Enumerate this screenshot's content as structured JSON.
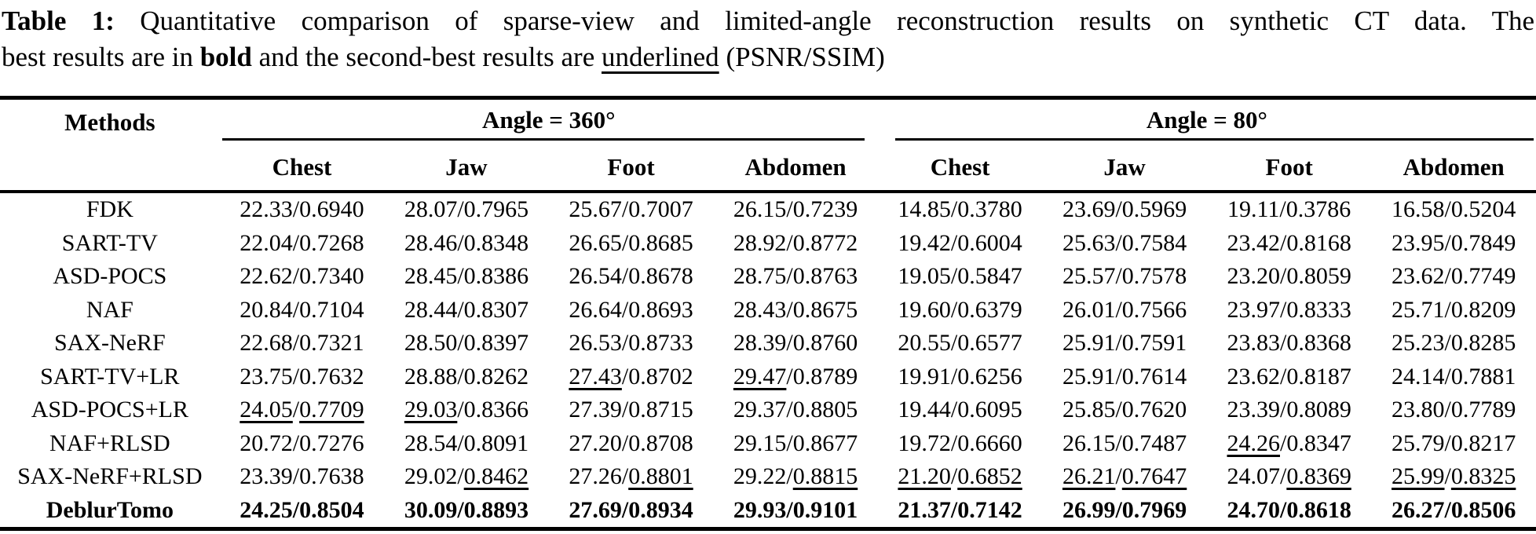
{
  "caption": {
    "label": "Table 1:",
    "line1_rest": "Quantitative comparison of sparse-view and limited-angle reconstruction results on synthetic CT data. The",
    "line2_pre": "best results are in",
    "bold_word": "bold",
    "line2_mid": "and the second-best results are",
    "underlined_word": "underlined",
    "line2_post": "(PSNR/SSIM)"
  },
  "table": {
    "methods_header": "Methods",
    "metric_format": "PSNR/SSIM",
    "group_headers": [
      {
        "label": "Angle = 360°"
      },
      {
        "label": "Angle = 80°"
      }
    ],
    "sub_headers": [
      "Chest",
      "Jaw",
      "Foot",
      "Abdomen",
      "Chest",
      "Jaw",
      "Foot",
      "Abdomen"
    ],
    "rows": [
      {
        "method": "FDK",
        "bold": false,
        "cells": [
          {
            "p": "22.33",
            "s": "0.6940"
          },
          {
            "p": "28.07",
            "s": "0.7965"
          },
          {
            "p": "25.67",
            "s": "0.7007"
          },
          {
            "p": "26.15",
            "s": "0.7239"
          },
          {
            "p": "14.85",
            "s": "0.3780"
          },
          {
            "p": "23.69",
            "s": "0.5969"
          },
          {
            "p": "19.11",
            "s": "0.3786"
          },
          {
            "p": "16.58",
            "s": "0.5204"
          }
        ]
      },
      {
        "method": "SART-TV",
        "bold": false,
        "cells": [
          {
            "p": "22.04",
            "s": "0.7268"
          },
          {
            "p": "28.46",
            "s": "0.8348"
          },
          {
            "p": "26.65",
            "s": "0.8685"
          },
          {
            "p": "28.92",
            "s": "0.8772"
          },
          {
            "p": "19.42",
            "s": "0.6004"
          },
          {
            "p": "25.63",
            "s": "0.7584"
          },
          {
            "p": "23.42",
            "s": "0.8168"
          },
          {
            "p": "23.95",
            "s": "0.7849"
          }
        ]
      },
      {
        "method": "ASD-POCS",
        "bold": false,
        "cells": [
          {
            "p": "22.62",
            "s": "0.7340"
          },
          {
            "p": "28.45",
            "s": "0.8386"
          },
          {
            "p": "26.54",
            "s": "0.8678"
          },
          {
            "p": "28.75",
            "s": "0.8763"
          },
          {
            "p": "19.05",
            "s": "0.5847"
          },
          {
            "p": "25.57",
            "s": "0.7578"
          },
          {
            "p": "23.20",
            "s": "0.8059"
          },
          {
            "p": "23.62",
            "s": "0.7749"
          }
        ]
      },
      {
        "method": "NAF",
        "bold": false,
        "cells": [
          {
            "p": "20.84",
            "s": "0.7104"
          },
          {
            "p": "28.44",
            "s": "0.8307"
          },
          {
            "p": "26.64",
            "s": "0.8693"
          },
          {
            "p": "28.43",
            "s": "0.8675"
          },
          {
            "p": "19.60",
            "s": "0.6379"
          },
          {
            "p": "26.01",
            "s": "0.7566"
          },
          {
            "p": "23.97",
            "s": "0.8333"
          },
          {
            "p": "25.71",
            "s": "0.8209"
          }
        ]
      },
      {
        "method": "SAX-NeRF",
        "bold": false,
        "cells": [
          {
            "p": "22.68",
            "s": "0.7321"
          },
          {
            "p": "28.50",
            "s": "0.8397"
          },
          {
            "p": "26.53",
            "s": "0.8733"
          },
          {
            "p": "28.39",
            "s": "0.8760"
          },
          {
            "p": "20.55",
            "s": "0.6577"
          },
          {
            "p": "25.91",
            "s": "0.7591"
          },
          {
            "p": "23.83",
            "s": "0.8368"
          },
          {
            "p": "25.23",
            "s": "0.8285"
          }
        ]
      },
      {
        "method": "SART-TV+LR",
        "bold": false,
        "cells": [
          {
            "p": "23.75",
            "s": "0.7632"
          },
          {
            "p": "28.88",
            "s": "0.8262"
          },
          {
            "p": "27.43",
            "pu": true,
            "s": "0.8702"
          },
          {
            "p": "29.47",
            "pu": true,
            "s": "0.8789"
          },
          {
            "p": "19.91",
            "s": "0.6256"
          },
          {
            "p": "25.91",
            "s": "0.7614"
          },
          {
            "p": "23.62",
            "s": "0.8187"
          },
          {
            "p": "24.14",
            "s": "0.7881"
          }
        ]
      },
      {
        "method": "ASD-POCS+LR",
        "bold": false,
        "cells": [
          {
            "p": "24.05",
            "pu": true,
            "s": "0.7709",
            "su": true
          },
          {
            "p": "29.03",
            "pu": true,
            "s": "0.8366"
          },
          {
            "p": "27.39",
            "s": "0.8715"
          },
          {
            "p": "29.37",
            "s": "0.8805"
          },
          {
            "p": "19.44",
            "s": "0.6095"
          },
          {
            "p": "25.85",
            "s": "0.7620"
          },
          {
            "p": "23.39",
            "s": "0.8089"
          },
          {
            "p": "23.80",
            "s": "0.7789"
          }
        ]
      },
      {
        "method": "NAF+RLSD",
        "bold": false,
        "cells": [
          {
            "p": "20.72",
            "s": "0.7276"
          },
          {
            "p": "28.54",
            "s": "0.8091"
          },
          {
            "p": "27.20",
            "s": "0.8708"
          },
          {
            "p": "29.15",
            "s": "0.8677"
          },
          {
            "p": "19.72",
            "s": "0.6660"
          },
          {
            "p": "26.15",
            "s": "0.7487"
          },
          {
            "p": "24.26",
            "pu": true,
            "s": "0.8347"
          },
          {
            "p": "25.79",
            "s": "0.8217"
          }
        ]
      },
      {
        "method": "SAX-NeRF+RLSD",
        "bold": false,
        "cells": [
          {
            "p": "23.39",
            "s": "0.7638"
          },
          {
            "p": "29.02",
            "s": "0.8462",
            "su": true
          },
          {
            "p": "27.26",
            "s": "0.8801",
            "su": true
          },
          {
            "p": "29.22",
            "s": "0.8815",
            "su": true
          },
          {
            "p": "21.20",
            "pu": true,
            "s": "0.6852",
            "su": true
          },
          {
            "p": "26.21",
            "pu": true,
            "s": "0.7647",
            "su": true
          },
          {
            "p": "24.07",
            "s": "0.8369",
            "su": true
          },
          {
            "p": "25.99",
            "pu": true,
            "s": "0.8325",
            "su": true
          }
        ]
      },
      {
        "method": "DeblurTomo",
        "bold": true,
        "cells": [
          {
            "p": "24.25",
            "s": "0.8504"
          },
          {
            "p": "30.09",
            "s": "0.8893"
          },
          {
            "p": "27.69",
            "s": "0.8934"
          },
          {
            "p": "29.93",
            "s": "0.9101"
          },
          {
            "p": "21.37",
            "s": "0.7142"
          },
          {
            "p": "26.99",
            "s": "0.7969"
          },
          {
            "p": "24.70",
            "s": "0.8618"
          },
          {
            "p": "26.27",
            "s": "0.8506"
          }
        ]
      }
    ]
  }
}
